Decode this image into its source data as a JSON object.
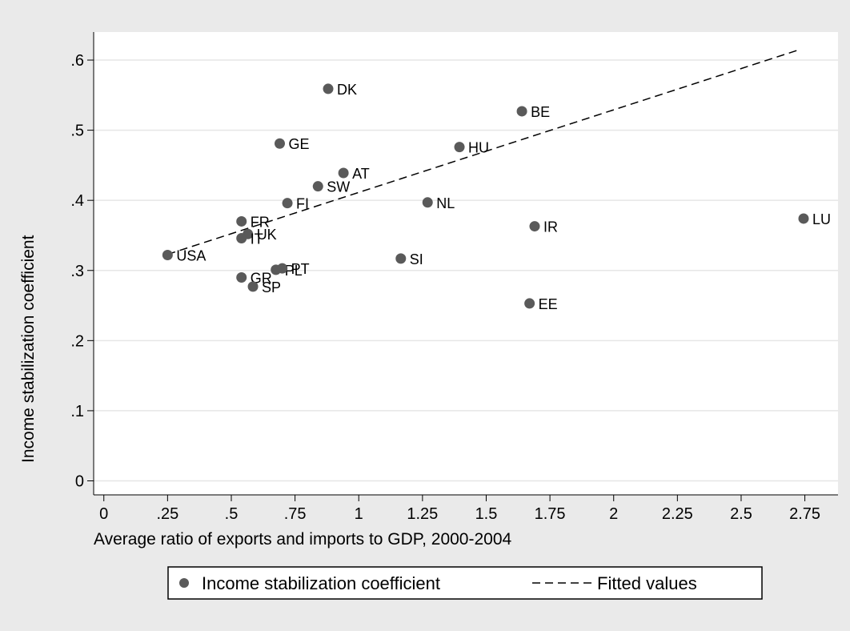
{
  "chart_data": {
    "type": "scatter",
    "xlabel": "Average ratio of exports and imports to GDP, 2000-2004",
    "ylabel": "Income stabilization coefficient",
    "xlim": [
      -0.04,
      2.88
    ],
    "ylim": [
      -0.02,
      0.64
    ],
    "x_ticks": [
      0,
      0.25,
      0.5,
      0.75,
      1,
      1.25,
      1.5,
      1.75,
      2,
      2.25,
      2.5,
      2.75
    ],
    "x_tick_labels": [
      "0",
      ".25",
      ".5",
      ".75",
      "1",
      "1.25",
      "1.5",
      "1.75",
      "2",
      "2.25",
      "2.5",
      "2.75"
    ],
    "y_ticks": [
      0,
      0.1,
      0.2,
      0.3,
      0.4,
      0.5,
      0.6
    ],
    "y_tick_labels": [
      "0",
      ".1",
      ".2",
      ".3",
      ".4",
      ".5",
      ".6"
    ],
    "grid": "horizontal",
    "legend_position": "bottom",
    "series": [
      {
        "name": "Income stabilization coefficient",
        "style": "markers",
        "color": "#5a5a5a",
        "points": [
          {
            "label": "USA",
            "x": 0.25,
            "y": 0.322
          },
          {
            "label": "FR",
            "x": 0.54,
            "y": 0.37
          },
          {
            "label": "UK",
            "x": 0.565,
            "y": 0.352
          },
          {
            "label": "IT",
            "x": 0.54,
            "y": 0.346
          },
          {
            "label": "GR",
            "x": 0.54,
            "y": 0.29
          },
          {
            "label": "SP",
            "x": 0.585,
            "y": 0.277
          },
          {
            "label": "PL",
            "x": 0.675,
            "y": 0.301
          },
          {
            "label": "PT",
            "x": 0.7,
            "y": 0.303
          },
          {
            "label": "GE",
            "x": 0.69,
            "y": 0.481
          },
          {
            "label": "FI",
            "x": 0.72,
            "y": 0.396
          },
          {
            "label": "DK",
            "x": 0.88,
            "y": 0.559
          },
          {
            "label": "SW",
            "x": 0.84,
            "y": 0.42
          },
          {
            "label": "AT",
            "x": 0.94,
            "y": 0.439
          },
          {
            "label": "SI",
            "x": 1.165,
            "y": 0.317
          },
          {
            "label": "NL",
            "x": 1.27,
            "y": 0.397
          },
          {
            "label": "HU",
            "x": 1.395,
            "y": 0.476
          },
          {
            "label": "BE",
            "x": 1.64,
            "y": 0.527
          },
          {
            "label": "IR",
            "x": 1.69,
            "y": 0.363
          },
          {
            "label": "EE",
            "x": 1.67,
            "y": 0.253
          },
          {
            "label": "LU",
            "x": 2.745,
            "y": 0.374
          }
        ]
      },
      {
        "name": "Fitted values",
        "style": "dashed-line",
        "color": "#000000",
        "x": [
          0.25,
          2.73
        ],
        "y": [
          0.323,
          0.615
        ]
      }
    ]
  }
}
